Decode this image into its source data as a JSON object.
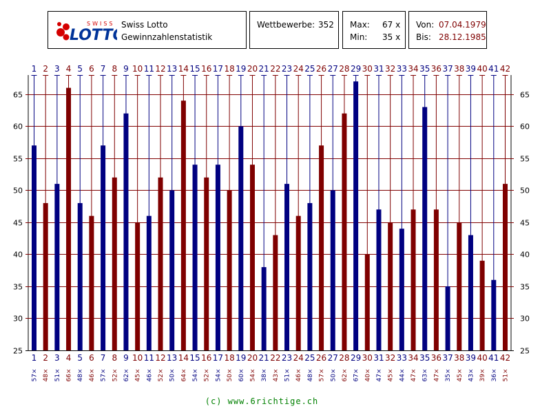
{
  "header": {
    "logo_small_text": "SWISS",
    "logo_text": "LOTTO",
    "title": "Swiss Lotto",
    "subtitle": "Gewinnzahlenstatistik",
    "competitions_label": "Wettbewerbe:",
    "competitions_value": "352",
    "max_label": "Max:",
    "max_value": "67 x",
    "min_label": "Min:",
    "min_value": "35 x",
    "from_label": "Von:",
    "from_value": "07.04.1979",
    "to_label": "Bis:",
    "to_value": "28.12.1985"
  },
  "colors": {
    "blue": "#000080",
    "red": "#7f0000",
    "grid": "#7f0000",
    "footer": "#008000"
  },
  "chart_data": {
    "type": "bar",
    "categories": [
      "1",
      "2",
      "3",
      "4",
      "5",
      "6",
      "7",
      "8",
      "9",
      "10",
      "11",
      "12",
      "13",
      "14",
      "15",
      "16",
      "17",
      "18",
      "19",
      "20",
      "21",
      "22",
      "23",
      "24",
      "25",
      "26",
      "27",
      "28",
      "29",
      "30",
      "31",
      "32",
      "33",
      "34",
      "35",
      "36",
      "37",
      "38",
      "39",
      "40",
      "41",
      "42"
    ],
    "values": [
      57,
      48,
      51,
      66,
      48,
      46,
      57,
      52,
      62,
      45,
      46,
      52,
      50,
      64,
      54,
      52,
      54,
      50,
      60,
      54,
      38,
      43,
      51,
      46,
      48,
      57,
      50,
      62,
      67,
      40,
      47,
      45,
      44,
      47,
      63,
      47,
      35,
      45,
      43,
      39,
      36,
      51
    ],
    "count_labels": [
      "57×",
      "48×",
      "51×",
      "66×",
      "48×",
      "46×",
      "57×",
      "52×",
      "62×",
      "45×",
      "46×",
      "52×",
      "50×",
      "64×",
      "54×",
      "52×",
      "54×",
      "50×",
      "60×",
      "54×",
      "38×",
      "43×",
      "51×",
      "46×",
      "48×",
      "57×",
      "50×",
      "62×",
      "67×",
      "40×",
      "47×",
      "45×",
      "44×",
      "47×",
      "63×",
      "47×",
      "35×",
      "45×",
      "43×",
      "39×",
      "36×",
      "51×"
    ],
    "yticks": [
      25,
      30,
      35,
      40,
      45,
      50,
      55,
      60,
      65
    ],
    "ylim": [
      25,
      68
    ],
    "grid": true,
    "bar_colors": [
      "blue",
      "red"
    ]
  },
  "footer": "(c) www.6richtige.ch"
}
